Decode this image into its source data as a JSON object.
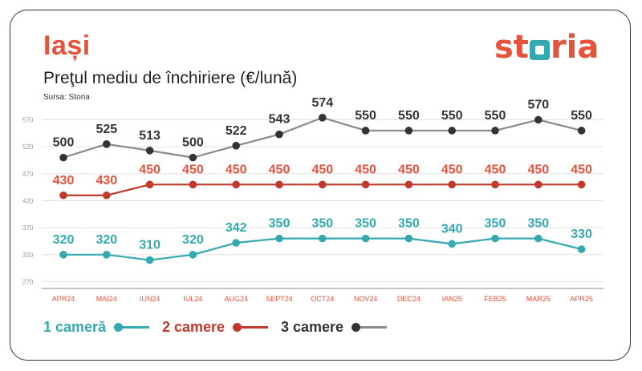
{
  "header": {
    "city": "Iași",
    "subtitle": "Preţul mediu de închiriere (€/lună)",
    "source": "Sursa: Storia"
  },
  "brand": {
    "left": "st",
    "right": "ria"
  },
  "colors": {
    "accent": "#e5533d",
    "teal": "#34a9b0",
    "red": "#c0392b",
    "gray": "#8a8a8a",
    "dark": "#333333"
  },
  "chart_data": {
    "type": "line",
    "categories": [
      "APR24",
      "MAI24",
      "IUN24",
      "IUL24",
      "AUG24",
      "SEPT24",
      "OCT24",
      "NOV24",
      "DEC24",
      "IAN25",
      "FEB25",
      "MAR25",
      "APR25"
    ],
    "y_ticks": [
      570,
      520,
      470,
      420,
      370,
      320,
      270
    ],
    "ylim": [
      270,
      580
    ],
    "grid": true,
    "legend_position": "bottom",
    "series": [
      {
        "name": "1 cameră",
        "color": "#34a9b0",
        "dot": "#34a9b0",
        "label_color": "#34a9b0",
        "values": [
          320,
          320,
          310,
          320,
          342,
          350,
          350,
          350,
          350,
          340,
          350,
          350,
          330
        ]
      },
      {
        "name": "2 camere",
        "color": "#c0392b",
        "dot": "#c0392b",
        "label_color": "#e5533d",
        "values": [
          430,
          430,
          450,
          450,
          450,
          450,
          450,
          450,
          450,
          450,
          450,
          450,
          450
        ]
      },
      {
        "name": "3 camere",
        "color": "#8a8a8a",
        "dot": "#333333",
        "label_color": "#333333",
        "values": [
          500,
          525,
          513,
          500,
          522,
          543,
          574,
          550,
          550,
          550,
          550,
          570,
          550
        ]
      }
    ]
  }
}
